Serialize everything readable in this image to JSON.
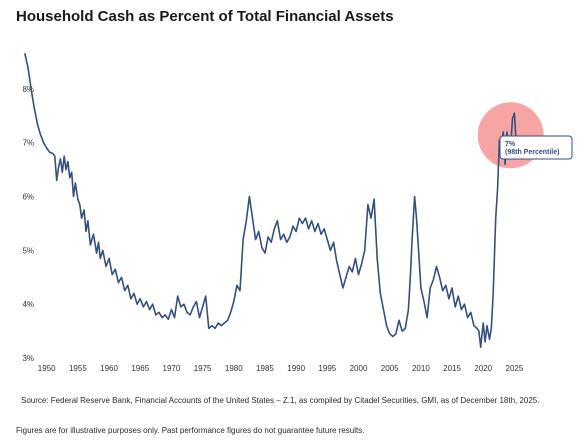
{
  "page": {
    "source_note": "Source: Federal Reserve Bank, Financial Accounts of the United States – Z.1, as compiled by Citadel Securities, GMI, as of December 18th, 2025.",
    "disclaimer": "Figures are for illustrative purposes only. Past performance figures do not guarantee future results."
  },
  "chart_data": {
    "type": "line",
    "title": "Household Cash as Percent of Total Financial Assets",
    "xlabel": "",
    "ylabel": "",
    "xlim": [
      1947,
      2027.5
    ],
    "ylim": [
      3,
      8.5
    ],
    "grid": false,
    "legend": "none",
    "y_ticks": [
      3,
      4,
      5,
      6,
      7,
      8
    ],
    "y_tick_labels": [
      "3%",
      "4%",
      "5%",
      "6%",
      "7%",
      "8%"
    ],
    "x_ticks": [
      1950,
      1955,
      1960,
      1965,
      1970,
      1975,
      1980,
      1985,
      1990,
      1995,
      2000,
      2005,
      2010,
      2015,
      2020,
      2025
    ],
    "x_tick_labels": [
      "1950",
      "1955",
      "1960",
      "1965",
      "1970",
      "1975",
      "1980",
      "1985",
      "1990",
      "1995",
      "2000",
      "2005",
      "2010",
      "2015",
      "2020",
      "2025"
    ],
    "series": [
      {
        "color": "#34507e",
        "x": [
          1946.5,
          1947,
          1947.5,
          1948,
          1948.5,
          1949,
          1949.5,
          1950,
          1950.5,
          1951,
          1951.3,
          1951.6,
          1951.9,
          1952.2,
          1952.5,
          1952.8,
          1953.1,
          1953.4,
          1953.7,
          1954,
          1954.3,
          1954.6,
          1955,
          1955.3,
          1955.6,
          1956,
          1956.3,
          1956.6,
          1957,
          1957.5,
          1958,
          1958.3,
          1958.6,
          1959,
          1959.5,
          1960,
          1960.5,
          1961,
          1961.5,
          1962,
          1962.5,
          1963,
          1963.5,
          1964,
          1964.5,
          1965,
          1965.5,
          1966,
          1966.5,
          1967,
          1967.5,
          1968,
          1968.5,
          1969,
          1969.5,
          1970,
          1970.5,
          1971,
          1971.5,
          1972,
          1972.5,
          1973,
          1973.5,
          1974,
          1974.5,
          1975,
          1975.5,
          1976,
          1976.5,
          1977,
          1977.5,
          1978,
          1978.5,
          1979,
          1979.5,
          1980,
          1980.5,
          1981,
          1981.5,
          1982,
          1982.5,
          1983,
          1983.5,
          1984,
          1984.5,
          1985,
          1985.5,
          1986,
          1986.5,
          1987,
          1987.5,
          1988,
          1988.5,
          1989,
          1989.5,
          1990,
          1990.5,
          1991,
          1991.5,
          1992,
          1992.5,
          1993,
          1993.5,
          1994,
          1994.5,
          1995,
          1995.5,
          1996,
          1996.5,
          1997,
          1997.5,
          1998,
          1998.5,
          1999,
          1999.5,
          2000,
          2000.5,
          2001,
          2001.5,
          2002,
          2002.5,
          2003,
          2003.5,
          2004,
          2004.5,
          2005,
          2005.5,
          2006,
          2006.5,
          2007,
          2007.5,
          2008,
          2008.3,
          2008.6,
          2009,
          2009.3,
          2009.6,
          2010,
          2010.5,
          2011,
          2011.5,
          2012,
          2012.5,
          2013,
          2013.5,
          2014,
          2014.5,
          2015,
          2015.5,
          2016,
          2016.5,
          2017,
          2017.5,
          2018,
          2018.5,
          2019,
          2019.3,
          2019.6,
          2020,
          2020.3,
          2020.6,
          2021,
          2021.3,
          2021.6,
          2022,
          2022.3,
          2022.6,
          2022.9,
          2023.2,
          2023.5,
          2023.8,
          2024.1,
          2024.4,
          2024.7,
          2025,
          2025.3,
          2025.6
        ],
        "y": [
          8.65,
          8.4,
          8.0,
          7.65,
          7.35,
          7.15,
          7.0,
          6.9,
          6.82,
          6.8,
          6.75,
          6.3,
          6.55,
          6.7,
          6.45,
          6.75,
          6.5,
          6.65,
          6.35,
          6.45,
          6.0,
          6.25,
          5.95,
          5.85,
          5.6,
          5.75,
          5.35,
          5.55,
          5.1,
          5.3,
          4.95,
          5.15,
          4.85,
          5.0,
          4.7,
          4.85,
          4.55,
          4.65,
          4.4,
          4.5,
          4.25,
          4.35,
          4.1,
          4.2,
          4.0,
          4.1,
          3.95,
          4.05,
          3.9,
          4.0,
          3.8,
          3.85,
          3.75,
          3.8,
          3.72,
          3.9,
          3.75,
          4.15,
          3.95,
          4.0,
          3.85,
          3.8,
          3.95,
          4.05,
          3.75,
          3.95,
          4.15,
          3.55,
          3.6,
          3.55,
          3.65,
          3.6,
          3.65,
          3.7,
          3.85,
          4.05,
          4.35,
          4.25,
          5.2,
          5.55,
          6.0,
          5.6,
          5.2,
          5.35,
          5.05,
          4.95,
          5.25,
          5.15,
          5.4,
          5.55,
          5.2,
          5.3,
          5.15,
          5.25,
          5.45,
          5.35,
          5.6,
          5.5,
          5.6,
          5.4,
          5.55,
          5.35,
          5.5,
          5.3,
          5.4,
          5.2,
          5.0,
          5.15,
          4.8,
          4.55,
          4.3,
          4.5,
          4.7,
          4.6,
          4.85,
          4.55,
          4.75,
          5.0,
          5.85,
          5.6,
          5.95,
          4.85,
          4.2,
          3.9,
          3.6,
          3.45,
          3.4,
          3.45,
          3.7,
          3.5,
          3.55,
          3.9,
          4.5,
          5.2,
          6.0,
          5.6,
          5.05,
          4.3,
          4.05,
          3.75,
          4.3,
          4.45,
          4.7,
          4.5,
          4.25,
          4.35,
          4.1,
          4.3,
          3.95,
          4.15,
          3.9,
          4.0,
          3.75,
          3.85,
          3.6,
          3.55,
          3.5,
          3.2,
          3.65,
          3.3,
          3.6,
          3.35,
          3.55,
          4.2,
          5.6,
          6.15,
          7.05,
          6.8,
          7.2,
          6.6,
          7.2,
          6.85,
          6.95,
          7.45,
          7.55,
          6.95,
          7.1
        ]
      }
    ],
    "annotation": {
      "text_line1": "7%",
      "text_line2": "(98th Percentile)",
      "x": 2024.4,
      "y": 7.25,
      "highlight_color": "#f15a5a"
    }
  }
}
